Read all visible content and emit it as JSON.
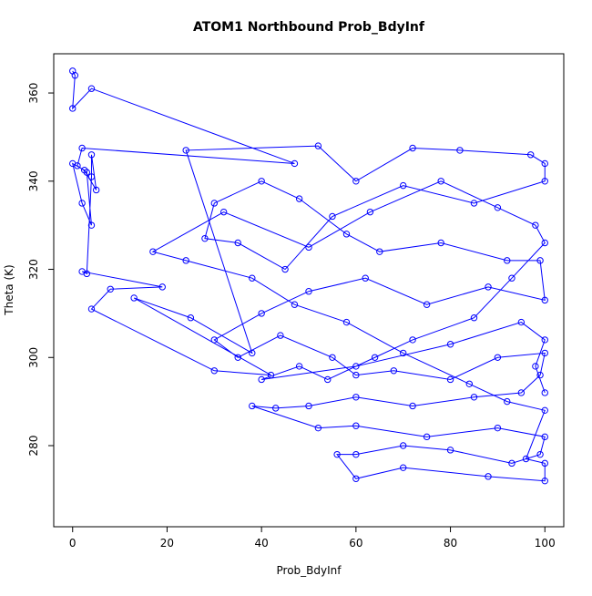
{
  "chart_data": {
    "type": "line",
    "title": "ATOM1 Northbound Prob_BdyInf",
    "x_label": "Prob_BdyInf",
    "y_label": "Theta (K)",
    "color": "#0000ff",
    "markers": true,
    "xlim": [
      -4,
      104
    ],
    "ylim": [
      261.6,
      368.9
    ],
    "xticks": [
      0,
      20,
      40,
      60,
      80,
      100
    ],
    "yticks": [
      280,
      300,
      320,
      340,
      360
    ],
    "x": [
      0,
      0.5,
      0,
      4,
      47,
      2,
      1,
      3,
      4,
      2,
      0,
      2.5,
      5,
      4,
      4,
      3,
      2,
      19,
      8,
      4,
      30,
      42,
      13,
      25,
      38,
      24,
      52,
      60,
      72,
      82,
      97,
      100,
      100,
      85,
      70,
      55,
      45,
      35,
      28,
      30,
      40,
      48,
      58,
      65,
      78,
      92,
      99,
      100,
      88,
      75,
      62,
      50,
      40,
      30,
      35,
      44,
      55,
      60,
      68,
      80,
      90,
      100,
      99,
      95,
      85,
      72,
      60,
      50,
      43,
      38,
      52,
      60,
      75,
      90,
      100,
      99,
      93,
      80,
      70,
      60,
      56,
      60,
      70,
      88,
      100,
      100,
      96,
      100,
      92,
      84,
      70,
      58,
      47,
      38,
      24,
      17,
      32,
      50,
      63,
      78,
      90,
      98,
      100,
      93,
      85,
      72,
      64,
      54,
      48,
      40,
      60,
      80,
      95,
      100,
      98,
      100
    ],
    "y": [
      365,
      364,
      356.5,
      361,
      344,
      347.5,
      343.5,
      342,
      330,
      335,
      344,
      342.5,
      338,
      346,
      341,
      319,
      319.5,
      316,
      315.5,
      311,
      297,
      296,
      313.5,
      309,
      301,
      347,
      348,
      340,
      347.5,
      347,
      346,
      344,
      340,
      335,
      339,
      332,
      320,
      326,
      327,
      335,
      340,
      336,
      328,
      324,
      326,
      322,
      322,
      313,
      316,
      312,
      318,
      315,
      310,
      304,
      300,
      305,
      300,
      296,
      297,
      295,
      300,
      301,
      296,
      292,
      291,
      289,
      291,
      289,
      288.5,
      289,
      284,
      284.5,
      282,
      284,
      282,
      278,
      276,
      279,
      280,
      278,
      278,
      272.5,
      275,
      273,
      272,
      276,
      277,
      288,
      290,
      294,
      301,
      308,
      312,
      318,
      322,
      324,
      333,
      325,
      333,
      340,
      334,
      330,
      326,
      318,
      309,
      304,
      300,
      295,
      298,
      295,
      298,
      303,
      308,
      304,
      298,
      292
    ]
  }
}
